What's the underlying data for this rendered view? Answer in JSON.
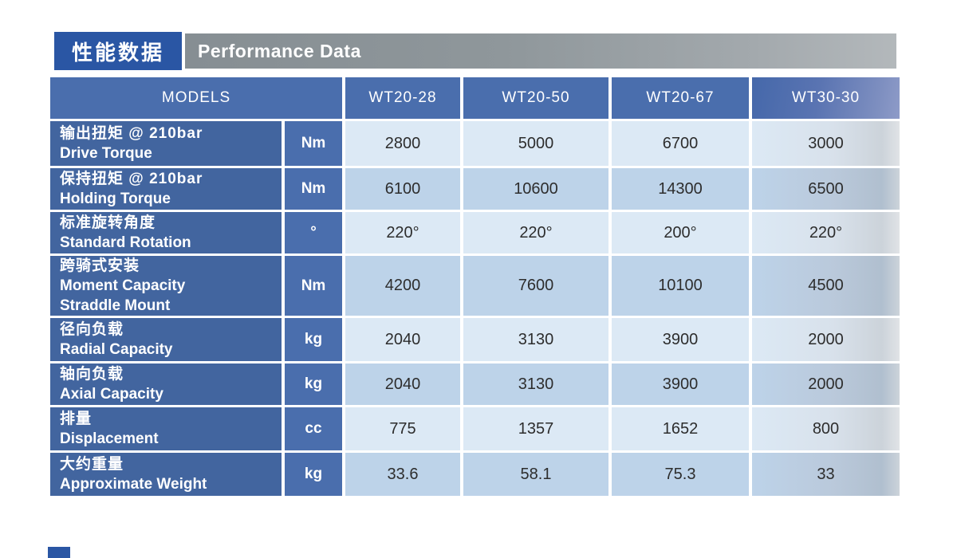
{
  "header": {
    "title_zh": "性能数据",
    "title_en": "Performance Data"
  },
  "table": {
    "models_header": "MODELS",
    "models": [
      "WT20-28",
      "WT20-50",
      "WT20-67",
      "WT30-30"
    ],
    "rows": [
      {
        "lines": [
          "输出扭矩 @ 210bar",
          "Drive Torque"
        ],
        "unit": "Nm",
        "values": [
          "2800",
          "5000",
          "6700",
          "3000"
        ]
      },
      {
        "lines": [
          "保持扭矩 @ 210bar",
          "Holding Torque"
        ],
        "unit": "Nm",
        "values": [
          "6100",
          "10600",
          "14300",
          "6500"
        ]
      },
      {
        "lines": [
          "标准旋转角度",
          "Standard Rotation"
        ],
        "unit": "°",
        "values": [
          "220°",
          "220°",
          "200°",
          "220°"
        ]
      },
      {
        "lines": [
          "跨骑式安装",
          "Moment Capacity",
          "Straddle Mount"
        ],
        "unit": "Nm",
        "values": [
          "4200",
          "7600",
          "10100",
          "4500"
        ]
      },
      {
        "lines": [
          "径向负载",
          "Radial Capacity"
        ],
        "unit": "kg",
        "values": [
          "2040",
          "3130",
          "3900",
          "2000"
        ]
      },
      {
        "lines": [
          "轴向负载",
          "Axial Capacity"
        ],
        "unit": "kg",
        "values": [
          "2040",
          "3130",
          "3900",
          "2000"
        ]
      },
      {
        "lines": [
          "排量",
          "Displacement"
        ],
        "unit": "cc",
        "values": [
          "775",
          "1357",
          "1652",
          "800"
        ]
      },
      {
        "lines": [
          "大约重量",
          "Approximate Weight"
        ],
        "unit": "kg",
        "values": [
          "33.6",
          "58.1",
          "75.3",
          "33"
        ]
      }
    ]
  },
  "colors": {
    "title_blue": "#2a56a4",
    "title_gray": "#8b9297",
    "header_blue": "#4a6ead",
    "label_blue": "#42659f",
    "row_light": "#dce9f5",
    "row_dark": "#bdd3e9"
  }
}
